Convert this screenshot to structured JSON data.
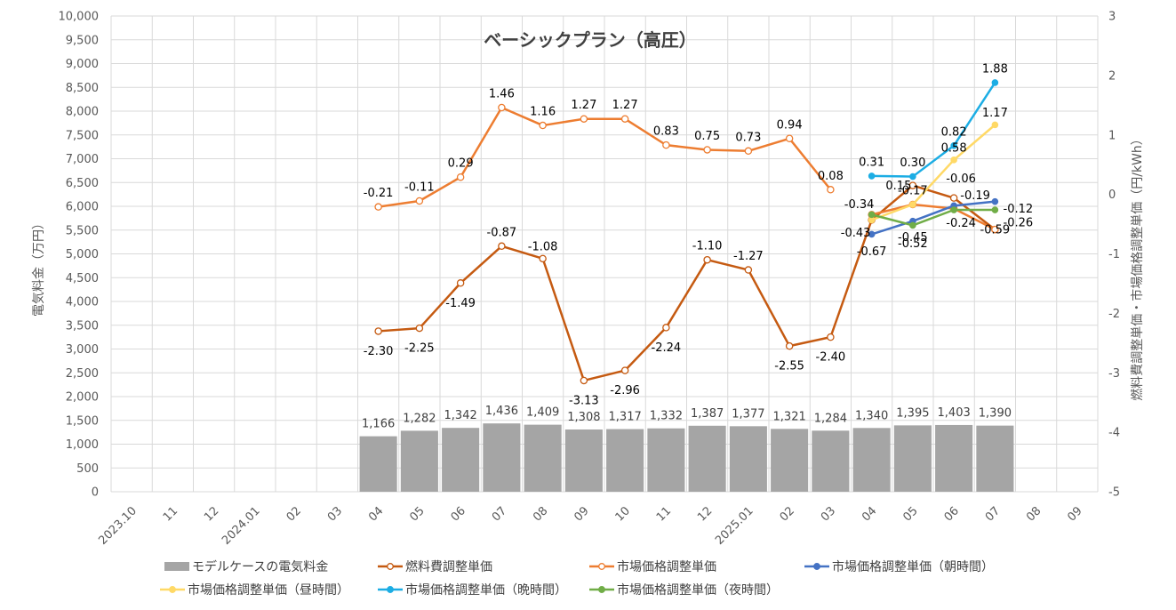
{
  "chart_data": {
    "type": "bar+line",
    "title": "ベーシックプラン（高圧）",
    "x_tick_labels": [
      "2023.10",
      "11",
      "12",
      "2024.01",
      "02",
      "03",
      "04",
      "05",
      "06",
      "07",
      "08",
      "09",
      "10",
      "11",
      "12",
      "2025.01",
      "02",
      "03",
      "04",
      "05",
      "06",
      "07",
      "08",
      "09"
    ],
    "y_left": {
      "label": "電気料金（万円）",
      "min": 0,
      "max": 10000,
      "step": 500,
      "tick_labels": [
        "0",
        "500",
        "1,000",
        "1,500",
        "2,000",
        "2,500",
        "3,000",
        "3,500",
        "4,000",
        "4,500",
        "5,000",
        "5,500",
        "6,000",
        "6,500",
        "7,000",
        "7,500",
        "8,000",
        "8,500",
        "9,000",
        "9,500",
        "10,000"
      ]
    },
    "y_right": {
      "label": "燃料費調整単価・市場価格調整単価（円/kWh）",
      "min": -5,
      "max": 3,
      "step": 1,
      "tick_labels": [
        "-5",
        "-4",
        "-3",
        "-2",
        "-1",
        "0",
        "1",
        "2",
        "3"
      ]
    },
    "grid": true,
    "legend_position": "bottom",
    "bar_series": {
      "name": "モデルケースの電気料金",
      "color": "#a5a5a5",
      "start_index": 6,
      "values": [
        1166,
        1282,
        1342,
        1436,
        1409,
        1308,
        1317,
        1332,
        1387,
        1377,
        1321,
        1284,
        1340,
        1395,
        1403,
        1390
      ],
      "labels": [
        "1,166",
        "1,282",
        "1,342",
        "1,436",
        "1,409",
        "1,308",
        "1,317",
        "1,332",
        "1,387",
        "1,377",
        "1,321",
        "1,284",
        "1,340",
        "1,395",
        "1,403",
        "1,390"
      ]
    },
    "line_series": [
      {
        "name": "燃料費調整単価",
        "color": "#c55a11",
        "marker": "hollow",
        "start_index": 6,
        "values": [
          -2.3,
          -2.25,
          -1.49,
          -0.87,
          -1.08,
          -3.13,
          -2.96,
          -2.24,
          -1.1,
          -1.27,
          -2.55,
          -2.4,
          -0.43,
          0.15,
          -0.06,
          -0.59
        ],
        "labels": [
          "-2.30",
          "-2.25",
          "-1.49",
          "-0.87",
          "-1.08",
          "-3.13",
          "-2.96",
          "-2.24",
          "-1.10",
          "-1.27",
          "-2.55",
          "-2.40",
          "-0.43",
          "0.15",
          "-0.06",
          "-0.59"
        ]
      },
      {
        "name": "市場価格調整単価",
        "color": "#ed7d31",
        "marker": "hollow",
        "start_index": 6,
        "segments": [
          [
            0,
            11
          ],
          [
            12,
            15
          ]
        ],
        "values": [
          -0.21,
          -0.11,
          0.29,
          1.46,
          1.16,
          1.27,
          1.27,
          0.83,
          0.75,
          0.73,
          0.94,
          0.08,
          -0.34,
          -0.17,
          -0.24,
          -0.59
        ],
        "labels": [
          "-0.21",
          "-0.11",
          "0.29",
          "1.46",
          "1.16",
          "1.27",
          "1.27",
          "0.83",
          "0.75",
          "0.73",
          "0.94",
          "0.08",
          "-0.34",
          "-0.17",
          "-0.24",
          ""
        ]
      },
      {
        "name": "市場価格調整単価（朝時間）",
        "color": "#4472c4",
        "marker": "filled",
        "start_index": 18,
        "values": [
          -0.67,
          -0.45,
          -0.19,
          -0.12
        ],
        "labels": [
          "-0.67",
          "-0.45",
          "-0.19",
          "-0.12"
        ]
      },
      {
        "name": "市場価格調整単価（昼時間）",
        "color": "#ffd966",
        "marker": "filled",
        "start_index": 18,
        "values": [
          -0.43,
          -0.17,
          0.58,
          1.17
        ],
        "labels": [
          "",
          "",
          "0.58",
          "1.17"
        ]
      },
      {
        "name": "市場価格調整単価（晩時間）",
        "color": "#1cade4",
        "marker": "filled",
        "start_index": 18,
        "values": [
          0.31,
          0.3,
          0.82,
          1.88
        ],
        "labels": [
          "0.31",
          "0.30",
          "0.82",
          "1.88"
        ]
      },
      {
        "name": "市場価格調整単価（夜時間）",
        "color": "#70ad47",
        "marker": "filled",
        "start_index": 18,
        "values": [
          -0.34,
          -0.52,
          -0.26,
          -0.26
        ],
        "labels": [
          "",
          "-0.52",
          "",
          "-0.26"
        ]
      }
    ]
  }
}
